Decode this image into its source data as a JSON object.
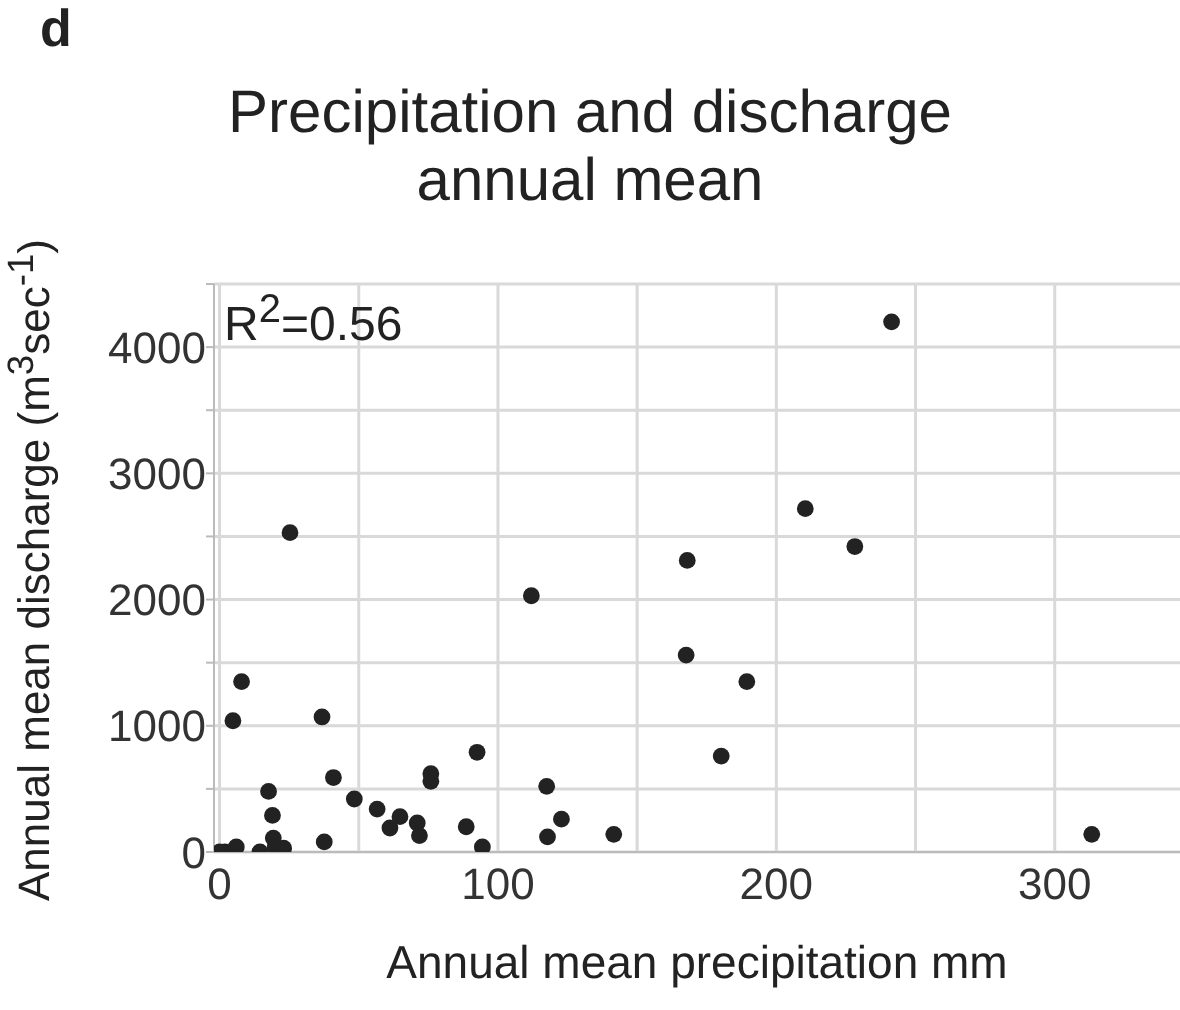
{
  "chart_data": {
    "type": "scatter",
    "title": "Precipitation and discharge annual mean",
    "xlabel": "Annual mean precipitation mm",
    "ylabel": "Annual mean discharge (m$^{3}$sec$^{-1}$)",
    "annotations": [
      "d",
      "R$^{2}$=0.56"
    ],
    "x": [
      25.3,
      112,
      168,
      167.6,
      7.9,
      4.8,
      36.8,
      92.5,
      75.9,
      75.9,
      40.9,
      117.5,
      17.6,
      48.4,
      56.6,
      19,
      64.8,
      122.8,
      61.2,
      71,
      71.8,
      88.6,
      37.6,
      117.8,
      141.6,
      94.4,
      19.3,
      20,
      23,
      14.5,
      6,
      1.9,
      0,
      241.4,
      210.4,
      228.2,
      189.4,
      180.2,
      313.3
    ],
    "series": [
      {
        "color": "#222222",
        "values": [
          2530,
          2030,
          2310,
          1560,
          1350,
          1040,
          1070,
          790,
          620,
          560,
          590,
          520,
          480,
          420,
          340,
          290,
          280,
          260,
          190,
          230,
          130,
          200,
          80,
          120,
          140,
          40,
          110,
          40,
          30,
          0,
          40,
          0,
          0,
          4200,
          2720,
          2420,
          1350,
          760,
          140
        ]
      }
    ],
    "xlim": [
      -2,
      345
    ],
    "ylim": [
      0,
      4500
    ],
    "xticks": [
      0,
      {
        "value": 50,
        "label": null
      },
      100,
      {
        "value": 150,
        "label": null
      },
      200,
      {
        "value": 250,
        "label": null
      },
      300
    ],
    "yticks": [
      0,
      {
        "value": 500,
        "label": null
      },
      1000,
      {
        "value": 1500,
        "label": null
      },
      2000,
      {
        "value": 2500,
        "label": null
      },
      3000,
      {
        "value": 3500,
        "label": null
      },
      4000,
      {
        "value": 4500,
        "label": null
      }
    ],
    "grid": true,
    "marker": "circle"
  }
}
